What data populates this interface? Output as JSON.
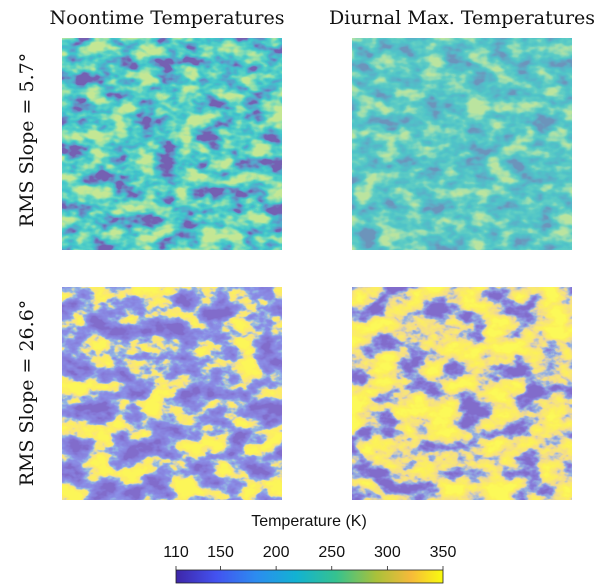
{
  "chart_data": {
    "type": "heatmap",
    "column_titles": [
      "Noontime Temperatures",
      "Diurnal Max. Temperatures"
    ],
    "row_labels": [
      "RMS Slope = 5.7°",
      "RMS Slope = 26.6°"
    ],
    "colorbar": {
      "label": "Temperature (K)",
      "colormap": "parula",
      "xlim": [
        110,
        350
      ],
      "xticks": [
        110,
        150,
        200,
        250,
        300,
        350
      ]
    }
  }
}
